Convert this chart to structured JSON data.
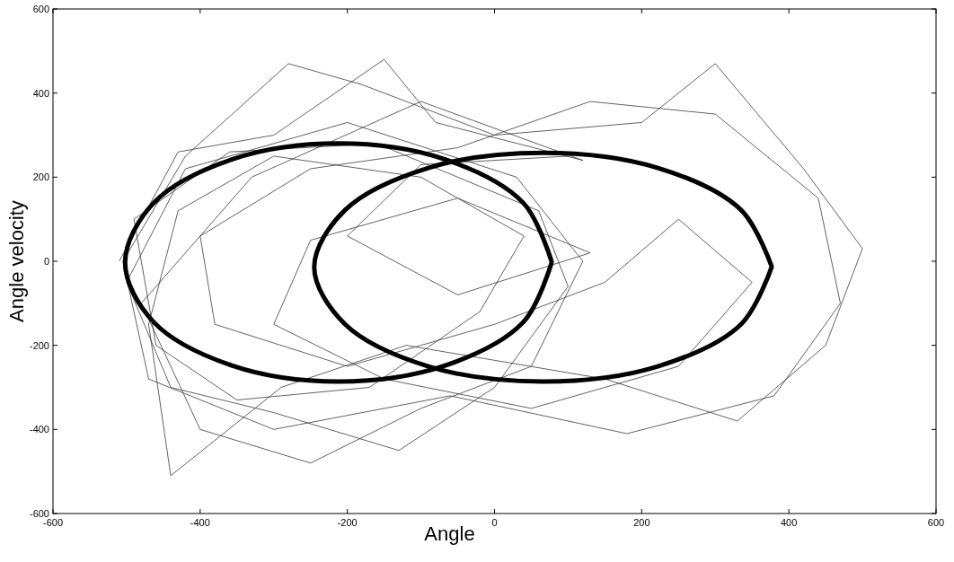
{
  "chart_data": {
    "type": "line",
    "xlabel": "Angle",
    "ylabel": "Angle velocity",
    "xlim": [
      -600,
      600
    ],
    "ylim": [
      -600,
      600
    ],
    "xticks": [
      -600,
      -400,
      -200,
      0,
      200,
      400,
      600
    ],
    "yticks": [
      -600,
      -400,
      -200,
      0,
      200,
      400,
      600
    ],
    "grid": false,
    "marker": "none",
    "line_style": "solid",
    "series": [
      {
        "color": "#3a3a3a",
        "x": [
          -510,
          -430,
          -300,
          -150,
          -80,
          120,
          -100,
          -330,
          -480,
          -400,
          -250,
          -100,
          50,
          120,
          30,
          -200,
          -420,
          -500,
          -440,
          -300,
          -130,
          0,
          100,
          60,
          -160,
          -360,
          -490,
          -460,
          -350,
          -170,
          -20,
          40,
          -100,
          -300,
          -430,
          -470,
          -440,
          -290,
          -120,
          150,
          330,
          450,
          500,
          420,
          300,
          200,
          0,
          -180,
          -280,
          -420,
          -505,
          -470,
          -300,
          -60,
          180,
          380,
          470,
          440,
          300,
          130,
          -50,
          -250,
          -400,
          -380,
          -200,
          0,
          150,
          250,
          350,
          250,
          50,
          -150,
          -300,
          -250,
          -50,
          130,
          -50,
          -200,
          -100,
          100
        ],
        "values": [
          0,
          260,
          300,
          480,
          330,
          240,
          380,
          200,
          -100,
          -400,
          -480,
          -350,
          -250,
          0,
          200,
          330,
          220,
          -50,
          -300,
          -360,
          -450,
          -300,
          -60,
          120,
          280,
          260,
          100,
          -200,
          -330,
          -300,
          -120,
          60,
          200,
          250,
          120,
          -150,
          -510,
          -300,
          -200,
          -280,
          -380,
          -200,
          30,
          220,
          470,
          330,
          300,
          420,
          470,
          250,
          0,
          -280,
          -400,
          -320,
          -410,
          -320,
          -100,
          150,
          350,
          380,
          270,
          220,
          60,
          -150,
          -250,
          -150,
          -50,
          100,
          -50,
          -250,
          -350,
          -280,
          -150,
          50,
          150,
          20,
          -80,
          60,
          230,
          250
        ]
      },
      {
        "color": "#000000",
        "x": [
          78,
          39,
          -67,
          -212,
          -357,
          -463,
          -502,
          -463,
          -357,
          -212,
          -67,
          39,
          78
        ],
        "values": [
          -3,
          139,
          242,
          280,
          242,
          139,
          -3,
          -145,
          -248,
          -286,
          -248,
          -145,
          -1
        ]
      },
      {
        "color": "#000000",
        "x": [
          377,
          335,
          222,
          66,
          -90,
          -203,
          -245,
          -203,
          -90,
          66,
          222,
          335,
          377
        ],
        "values": [
          -14,
          122,
          222,
          258,
          222,
          122,
          -14,
          -150,
          -250,
          -286,
          -250,
          -150,
          -12
        ]
      }
    ]
  }
}
